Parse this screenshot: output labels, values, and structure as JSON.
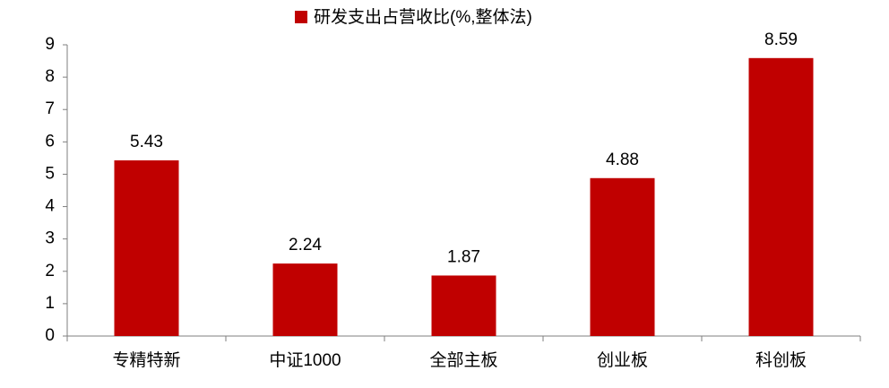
{
  "chart_data": {
    "type": "bar",
    "categories": [
      "专精特新",
      "中证1000",
      "全部主板",
      "创业板",
      "科创板"
    ],
    "series": [
      {
        "name": "研发支出占营收比(%,整体法)",
        "color": "#c00000",
        "values": [
          5.43,
          2.24,
          1.87,
          4.88,
          8.59
        ]
      }
    ],
    "ylim": [
      0,
      9
    ],
    "yticks": [
      0,
      1,
      2,
      3,
      4,
      5,
      6,
      7,
      8,
      9
    ],
    "legend": "top"
  }
}
